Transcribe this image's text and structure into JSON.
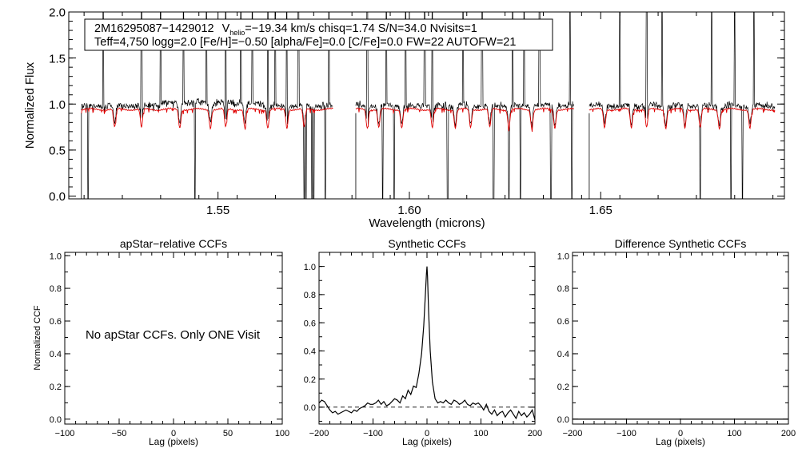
{
  "chart_data": [
    {
      "type": "line",
      "xlabel": "Wavelength (microns)",
      "ylabel": "Normalized Flux",
      "xlim": [
        1.511,
        1.698
      ],
      "ylim": [
        -0.03,
        2.0
      ],
      "xticks": [
        1.55,
        1.6,
        1.65
      ],
      "xtick_labels": [
        "1.55",
        "1.60",
        "1.65"
      ],
      "yticks": [
        0.0,
        0.5,
        1.0,
        1.5,
        2.0
      ],
      "ytick_labels": [
        "0.0",
        "0.5",
        "1.0",
        "1.5",
        "2.0"
      ],
      "chip_ranges_um": [
        [
          1.5143,
          1.58
        ],
        [
          1.586,
          1.643
        ],
        [
          1.647,
          1.6955
        ]
      ],
      "annotation": {
        "line1_star": "2M16295087−1429012",
        "line1_v": "V",
        "line1_v_sub": "helio",
        "line1_rest": "=−19.34 km/s  chisq=1.74  S/N=34.0  Nvisits=1",
        "line2": "Teff=4,750 logg=2.0 [Fe/H]=−0.50 [alpha/Fe]=0.0 [C/Fe]=0.0 FW=22 AUTOFW=21"
      },
      "series": [
        {
          "style": "observed",
          "color": "#000000",
          "continuum": 0.95,
          "noise": 0.035
        },
        {
          "style": "synthetic",
          "color": "#e00000",
          "continuum": 0.95
        }
      ],
      "spikes_up": [
        1.52,
        1.53,
        1.535,
        1.541,
        1.547,
        1.552,
        1.556,
        1.559,
        1.563,
        1.565,
        1.568,
        1.571,
        1.579,
        1.589,
        1.594,
        1.599,
        1.604,
        1.606,
        1.614,
        1.619,
        1.627,
        1.63,
        1.634,
        1.642,
        1.655,
        1.662,
        1.666,
        1.679,
        1.685,
        1.69
      ],
      "spikes_down": [
        1.516,
        1.544,
        1.5725,
        1.573,
        1.5745,
        1.575,
        1.578,
        1.593,
        1.596,
        1.61,
        1.622,
        1.626,
        1.629,
        1.637,
        1.6425,
        1.676,
        1.684,
        1.687
      ],
      "red_absorptions": [
        1.523,
        1.53,
        1.54,
        1.548,
        1.552,
        1.557,
        1.563,
        1.568,
        1.5725,
        1.589,
        1.592,
        1.598,
        1.606,
        1.612,
        1.616,
        1.621,
        1.626,
        1.632,
        1.638,
        1.651,
        1.658,
        1.662,
        1.667,
        1.672,
        1.676,
        1.681,
        1.689
      ]
    },
    {
      "type": "line",
      "title": "apStar−relative CCFs",
      "xlabel": "Lag (pixels)",
      "ylabel": "Normalized CCF",
      "xlim": [
        -100,
        100
      ],
      "ylim": [
        -0.03,
        1.02
      ],
      "xticks": [
        -100,
        -50,
        0,
        50,
        100
      ],
      "xtick_labels": [
        "−100",
        "−50",
        "0",
        "50",
        "100"
      ],
      "yticks": [
        0.0,
        0.2,
        0.4,
        0.6,
        0.8,
        1.0
      ],
      "ytick_labels": [
        "0.0",
        "0.2",
        "0.4",
        "0.6",
        "0.8",
        "1.0"
      ],
      "message": "No apStar CCFs.  Only ONE Visit",
      "series": []
    },
    {
      "type": "line",
      "title": "Synthetic CCFs",
      "xlabel": "Lag (pixels)",
      "xlim": [
        -200,
        200
      ],
      "ylim": [
        -0.12,
        1.1
      ],
      "xticks": [
        -200,
        -100,
        0,
        100,
        200
      ],
      "xtick_labels": [
        "−200",
        "−100",
        "0",
        "100",
        "200"
      ],
      "yticks": [
        0.0,
        0.2,
        0.4,
        0.6,
        0.8,
        1.0
      ],
      "ytick_labels": [
        "0.0",
        "0.2",
        "0.4",
        "0.6",
        "0.8",
        "1.0"
      ],
      "zero_line": true,
      "series": [
        {
          "x": [
            -200,
            -195,
            -190,
            -185,
            -180,
            -175,
            -170,
            -165,
            -160,
            -155,
            -150,
            -145,
            -140,
            -135,
            -130,
            -125,
            -120,
            -115,
            -110,
            -105,
            -100,
            -95,
            -90,
            -85,
            -80,
            -75,
            -70,
            -65,
            -60,
            -55,
            -50,
            -45,
            -40,
            -35,
            -30,
            -25,
            -20,
            -15,
            -10,
            -6,
            -3,
            -1,
            0,
            1,
            3,
            6,
            10,
            15,
            20,
            25,
            30,
            35,
            40,
            45,
            50,
            55,
            60,
            65,
            70,
            75,
            80,
            85,
            90,
            95,
            100,
            105,
            110,
            115,
            120,
            125,
            130,
            135,
            140,
            145,
            150,
            155,
            160,
            165,
            170,
            175,
            180,
            185,
            190,
            195,
            200
          ],
          "y": [
            0.03,
            0.05,
            0.04,
            0.01,
            -0.02,
            -0.04,
            -0.03,
            -0.05,
            -0.04,
            -0.03,
            -0.02,
            -0.03,
            -0.04,
            -0.02,
            -0.03,
            -0.01,
            0.0,
            0.01,
            0.03,
            0.02,
            0.02,
            0.03,
            0.05,
            0.02,
            0.04,
            0.01,
            0.02,
            0.04,
            0.06,
            0.05,
            0.03,
            0.08,
            0.06,
            0.12,
            0.09,
            0.15,
            0.14,
            0.24,
            0.38,
            0.58,
            0.8,
            0.95,
            1.0,
            0.93,
            0.68,
            0.4,
            0.18,
            0.06,
            0.03,
            0.04,
            0.03,
            0.05,
            0.03,
            0.02,
            0.05,
            0.04,
            0.02,
            0.03,
            0.05,
            0.02,
            0.01,
            0.03,
            0.02,
            0.03,
            0.01,
            -0.02,
            0.02,
            -0.03,
            -0.05,
            -0.02,
            -0.06,
            -0.04,
            -0.03,
            -0.07,
            -0.04,
            -0.02,
            -0.05,
            -0.08,
            -0.03,
            -0.06,
            -0.04,
            -0.07,
            -0.05,
            -0.02,
            -0.09
          ]
        }
      ]
    },
    {
      "type": "line",
      "title": "Difference Synthetic CCFs",
      "xlabel": "Lag (pixels)",
      "xlim": [
        -200,
        200
      ],
      "ylim": [
        -0.03,
        1.02
      ],
      "xticks": [
        -200,
        -100,
        0,
        100,
        200
      ],
      "xtick_labels": [
        "−200",
        "−100",
        "0",
        "100",
        "200"
      ],
      "yticks": [
        0.0,
        0.2,
        0.4,
        0.6,
        0.8,
        1.0
      ],
      "ytick_labels": [
        "0.0",
        "0.2",
        "0.4",
        "0.6",
        "0.8",
        "1.0"
      ],
      "series": [
        {
          "x": [
            -200,
            200
          ],
          "y": [
            0.0,
            0.0
          ]
        }
      ]
    }
  ]
}
